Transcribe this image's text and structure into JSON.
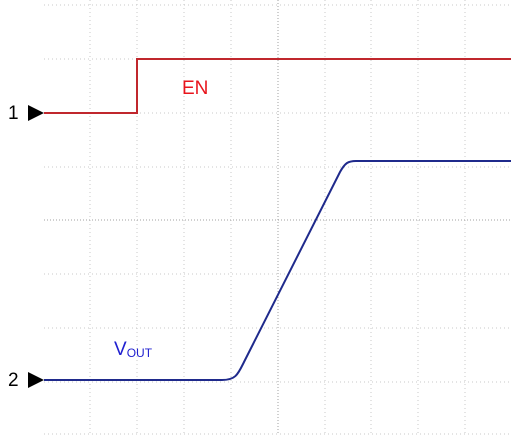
{
  "markers": [
    "1",
    "2"
  ],
  "labels": {
    "en": "EN",
    "vout": "V",
    "vout_sub": "OUT"
  }
}
